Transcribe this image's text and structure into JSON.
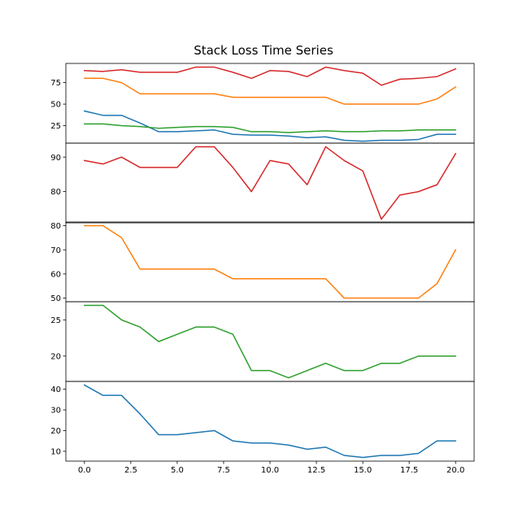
{
  "chart_data": {
    "type": "line",
    "title": "Stack Loss Time Series",
    "x": [
      0,
      1,
      2,
      3,
      4,
      5,
      6,
      7,
      8,
      9,
      10,
      11,
      12,
      13,
      14,
      15,
      16,
      17,
      18,
      19,
      20
    ],
    "xticks": [
      0.0,
      2.5,
      5.0,
      7.5,
      10.0,
      12.5,
      15.0,
      17.5,
      20.0
    ],
    "xtick_labels": [
      "0.0",
      "2.5",
      "5.0",
      "7.5",
      "10.0",
      "12.5",
      "15.0",
      "17.5",
      "20.0"
    ],
    "xlim": [
      -1,
      21
    ],
    "colors": {
      "blue": "#1f77b4",
      "orange": "#ff7f0e",
      "green": "#2ca02c",
      "red": "#d62728"
    },
    "series": [
      {
        "color": "#1f77b4",
        "values": [
          42,
          37,
          37,
          28,
          18,
          18,
          19,
          20,
          15,
          14,
          14,
          13,
          11,
          12,
          8,
          7,
          8,
          8,
          9,
          15,
          15
        ]
      },
      {
        "color": "#ff7f0e",
        "values": [
          80,
          80,
          75,
          62,
          62,
          62,
          62,
          62,
          58,
          58,
          58,
          58,
          58,
          58,
          50,
          50,
          50,
          50,
          50,
          56,
          70
        ]
      },
      {
        "color": "#2ca02c",
        "values": [
          27,
          27,
          25,
          24,
          22,
          23,
          24,
          24,
          23,
          18,
          18,
          17,
          18,
          19,
          18,
          18,
          19,
          19,
          20,
          20,
          20
        ]
      },
      {
        "color": "#d62728",
        "values": [
          89,
          88,
          90,
          87,
          87,
          87,
          93,
          93,
          87,
          80,
          89,
          88,
          82,
          93,
          89,
          86,
          72,
          79,
          80,
          82,
          91
        ]
      }
    ],
    "panels": [
      {
        "series": [
          0,
          1,
          2,
          3
        ],
        "ylim": [
          4.7,
          97.3
        ],
        "yticks": [
          25,
          50,
          75
        ],
        "ytick_labels": [
          "25",
          "50",
          "75"
        ],
        "show_xticks": false
      },
      {
        "series": [
          3
        ],
        "ylim": [
          70.95,
          94.05
        ],
        "yticks": [
          80,
          90
        ],
        "ytick_labels": [
          "80",
          "90"
        ],
        "show_xticks": false
      },
      {
        "series": [
          1
        ],
        "ylim": [
          48.5,
          81.5
        ],
        "yticks": [
          50,
          60,
          70,
          80
        ],
        "ytick_labels": [
          "50",
          "60",
          "70",
          "80"
        ],
        "show_xticks": false
      },
      {
        "series": [
          2
        ],
        "ylim": [
          16.5,
          27.5
        ],
        "yticks": [
          20,
          25
        ],
        "ytick_labels": [
          "20",
          "25"
        ],
        "show_xticks": false
      },
      {
        "series": [
          0
        ],
        "ylim": [
          5.25,
          43.75
        ],
        "yticks": [
          10,
          20,
          30,
          40
        ],
        "ytick_labels": [
          "10",
          "20",
          "30",
          "40"
        ],
        "show_xticks": true
      }
    ]
  }
}
